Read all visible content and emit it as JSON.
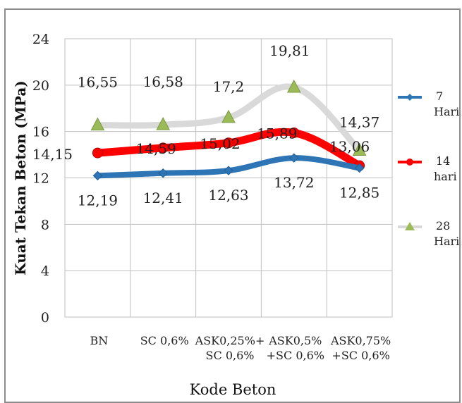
{
  "chart_data": {
    "type": "line",
    "title": "",
    "xlabel": "Kode Beton",
    "ylabel": "Kuat Tekan Beton (MPa)",
    "ylim": [
      0,
      24
    ],
    "yticks": [
      "0",
      "4",
      "8",
      "12",
      "16",
      "20",
      "24"
    ],
    "grid": true,
    "legend_position": "right",
    "categories": [
      [
        "BN"
      ],
      [
        "SC 0,6%"
      ],
      [
        "ASK0,25%+",
        "SC 0,6%"
      ],
      [
        "ASK0,5%",
        "+SC 0,6%"
      ],
      [
        "ASK0,75%",
        "+SC 0,6%"
      ]
    ],
    "series": [
      {
        "name": [
          "7",
          "Hari"
        ],
        "color": "#2e75b6",
        "marker": "diamond",
        "values": [
          12.19,
          12.41,
          12.63,
          13.72,
          12.85
        ],
        "labels": [
          "12,19",
          "12,41",
          "12,63",
          "13,72",
          "12,85"
        ]
      },
      {
        "name": [
          "14",
          "hari"
        ],
        "color": "#ff0000",
        "marker": "circle",
        "values": [
          14.15,
          14.59,
          15.02,
          15.89,
          13.06
        ],
        "labels": [
          "14,15",
          "14,59",
          "15,02",
          "15,89",
          "13,06"
        ]
      },
      {
        "name": [
          "28",
          "Hari"
        ],
        "color": "#d9d9d9",
        "marker": "triangle",
        "marker_color": "#9bbb59",
        "values": [
          16.55,
          16.58,
          17.2,
          19.81,
          14.37
        ],
        "labels": [
          "16,55",
          "16,58",
          "17,2",
          "19,81",
          "14,37"
        ]
      }
    ]
  }
}
